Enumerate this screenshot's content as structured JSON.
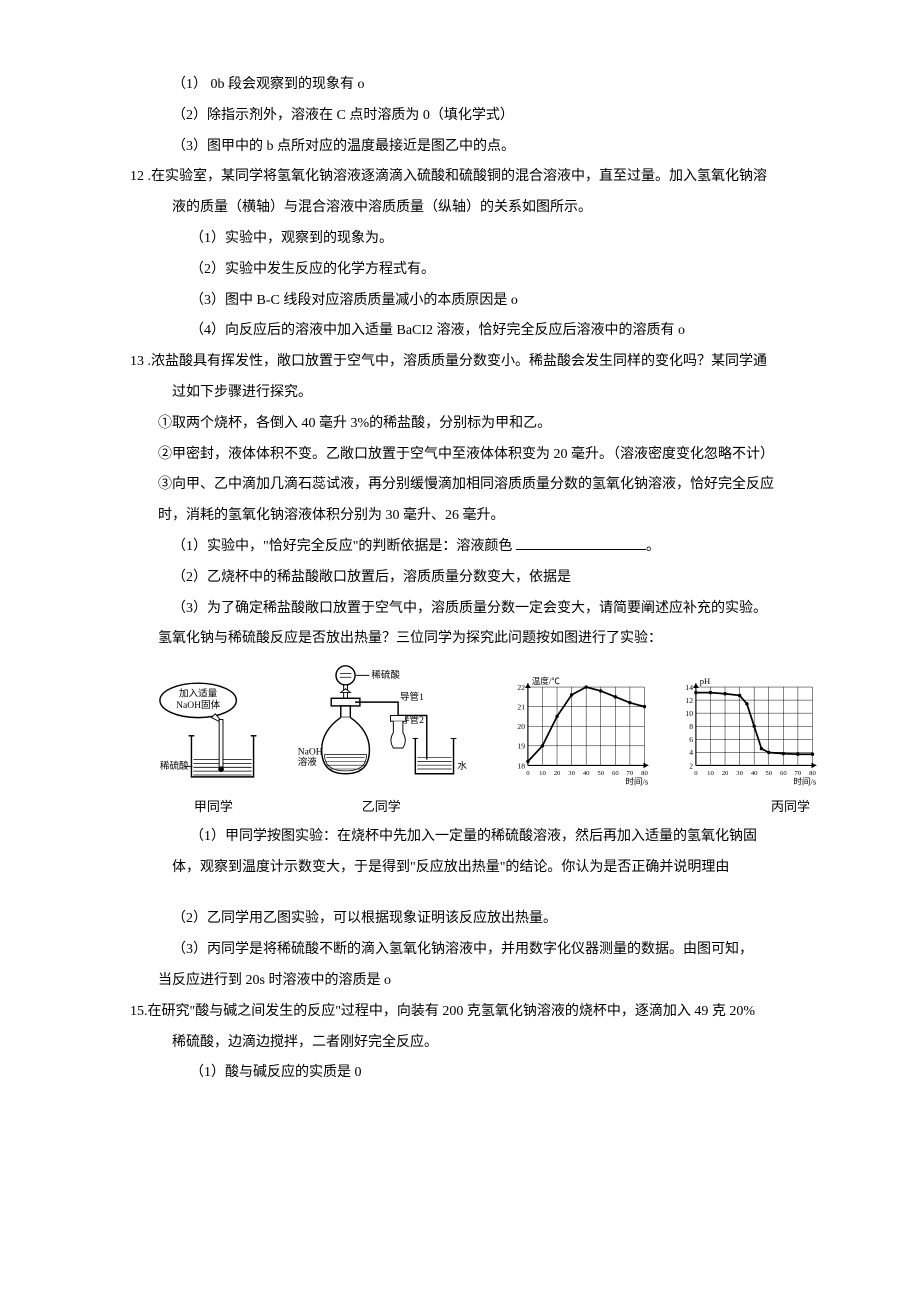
{
  "q11": {
    "a1": "（1）         0b 段会观察到的现象有 o",
    "a2": "（2）除指示剂外，溶液在 C 点时溶质为 0（填化学式）",
    "a3": "（3）图甲中的 b 点所对应的温度最接近是图乙中的点。"
  },
  "q12": {
    "stem1": "12 .在实验室，某同学将氢氧化钠溶液逐滴滴入硫酸和硫酸铜的混合溶液中，直至过量。加入氢氧化钠溶",
    "stem2": "液的质量（横轴）与混合溶液中溶质质量（纵轴）的关系如图所示。",
    "a1": "（1）实验中，观察到的现象为。",
    "a2": "（2）实验中发生反应的化学方程式有。",
    "a3": "（3）图中 B-C 线段对应溶质质量减小的本质原因是 o",
    "a4": "（4）向反应后的溶液中加入适量 BaCI2 溶液，恰好完全反应后溶液中的溶质有 o"
  },
  "q13": {
    "stem1": "13 .浓盐酸具有挥发性，敞口放置于空气中，溶质质量分数变小。稀盐酸会发生同样的变化吗？某同学通",
    "stem2": "过如下步骤进行探究。",
    "s1": "①取两个烧杯，各倒入 40 毫升 3%的稀盐酸，分别标为甲和乙。",
    "s2": "②甲密封，液体体积不变。乙敞口放置于空气中至液体体积变为 20 毫升。（溶液密度变化忽略不计）",
    "s3a": "③向甲、乙中滴加几滴石蕊试液，再分别缓慢滴加相同溶质质量分数的氢氧化钠溶液，恰好完全反应",
    "s3b": "时，消耗的氢氧化钠溶液体积分别为 30 毫升、26 毫升。",
    "a1": "（1）实验中，\"恰好完全反应\"的判断依据是：溶液颜色 ",
    "a2": "（2）乙烧杯中的稀盐酸敞口放置后，溶质质量分数变大，依据是",
    "a3": "（3）为了确定稀盐酸敞口放置于空气中，溶质质量分数一定会变大，请简要阐述应补充的实验。",
    "extra": "氢氧化钠与稀硫酸反应是否放出热量？三位同学为探究此问题按如图进行了实验："
  },
  "figures": {
    "speech": "加入适量\nNaOH固体",
    "beaker1_label": "稀硫酸",
    "fig1_label": "甲同学",
    "funnel_label": "稀硫酸",
    "tube1": "导管1",
    "tube2": "导管2",
    "naoh": "NaOH",
    "solution": "溶液",
    "water": "水",
    "fig2_label": "乙同学",
    "chart1": {
      "ylabel": "温度/℃",
      "xlabel": "时间/s",
      "yticks": [
        "18",
        "19",
        "20",
        "21",
        "22"
      ],
      "xticks": [
        "0",
        "10",
        "20",
        "30",
        "40",
        "50",
        "60",
        "70",
        "80"
      ],
      "points": [
        [
          0,
          18.2
        ],
        [
          10,
          19
        ],
        [
          20,
          20.5
        ],
        [
          30,
          21.6
        ],
        [
          40,
          22
        ],
        [
          50,
          21.8
        ],
        [
          60,
          21.5
        ],
        [
          70,
          21.2
        ],
        [
          80,
          21
        ]
      ],
      "line_color": "#000000",
      "grid_color": "#000000",
      "bg": "#ffffff",
      "ylim": [
        18,
        22
      ],
      "xlim": [
        0,
        80
      ]
    },
    "chart2": {
      "ylabel": "pH",
      "xlabel": "时间/s",
      "yticks": [
        "2",
        "4",
        "6",
        "8",
        "10",
        "12",
        "14"
      ],
      "xticks": [
        "0",
        "10",
        "20",
        "30",
        "40",
        "50",
        "60",
        "70",
        "80"
      ],
      "points": [
        [
          0,
          13
        ],
        [
          10,
          13
        ],
        [
          20,
          12.8
        ],
        [
          30,
          12.5
        ],
        [
          35,
          11
        ],
        [
          40,
          7
        ],
        [
          45,
          3
        ],
        [
          50,
          2.3
        ],
        [
          60,
          2.1
        ],
        [
          70,
          2
        ],
        [
          80,
          2
        ]
      ],
      "line_color": "#000000",
      "grid_color": "#000000",
      "bg": "#ffffff",
      "ylim": [
        0,
        14
      ],
      "xlim": [
        0,
        80
      ]
    },
    "fig3_label": "丙同学"
  },
  "q14": {
    "a1a": "（1）甲同学按图实验：在烧杯中先加入一定量的稀硫酸溶液，然后再加入适量的氢氧化钠固",
    "a1b": "体，观察到温度计示数变大，于是得到\"反应放出热量\"的结论。你认为是否正确并说明理由",
    "a2": "（2）乙同学用乙图实验，可以根据现象证明该反应放出热量。",
    "a3a": "（3）丙同学是将稀硫酸不断的滴入氢氧化钠溶液中，并用数字化仪器测量的数据。由图可知，",
    "a3b": "当反应进行到 20s 时溶液中的溶质是 o"
  },
  "q15": {
    "stem1": "15.在研究\"酸与碱之间发生的反应\"过程中，向装有 200 克氢氧化钠溶液的烧杯中，逐滴加入 49 克 20%",
    "stem2": "稀硫酸，边滴边搅拌，二者刚好完全反应。",
    "a1": "（1）酸与碱反应的实质是 0"
  }
}
